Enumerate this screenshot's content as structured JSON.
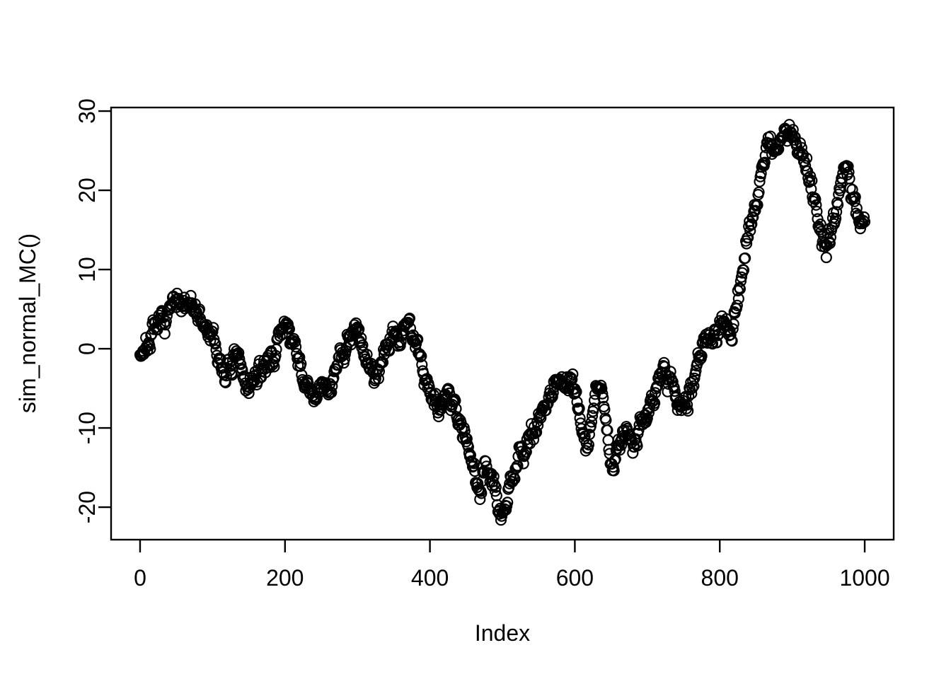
{
  "figure": {
    "kind": "R-base-graphics scatter plot",
    "background_color": "#ffffff",
    "foreground_color": "#000000"
  },
  "chart_data": {
    "type": "scatter",
    "title": "",
    "xlabel": "Index",
    "ylabel": "sim_normal_MC()",
    "x_ticks": [
      0,
      200,
      400,
      600,
      800,
      1000
    ],
    "y_ticks": [
      -20,
      -10,
      0,
      10,
      20,
      30
    ],
    "xlim": [
      -40,
      1040
    ],
    "ylim": [
      -24.1,
      30.45
    ],
    "grid": false,
    "legend": false,
    "marker": "open-circle",
    "n_points": 1001,
    "noise_sd": 0.7,
    "seed": 7,
    "series_waypoints": [
      [
        0,
        -0.5
      ],
      [
        8,
        0.2
      ],
      [
        15,
        1.2
      ],
      [
        22,
        2.3
      ],
      [
        30,
        3.3
      ],
      [
        38,
        4.4
      ],
      [
        45,
        5.4
      ],
      [
        52,
        5.6
      ],
      [
        58,
        4.7
      ],
      [
        64,
        5.7
      ],
      [
        70,
        6.2
      ],
      [
        76,
        5.2
      ],
      [
        82,
        3.6
      ],
      [
        88,
        2.6
      ],
      [
        94,
        2.2
      ],
      [
        100,
        1.2
      ],
      [
        106,
        -0.6
      ],
      [
        112,
        -2.0
      ],
      [
        118,
        -2.9
      ],
      [
        124,
        -2.6
      ],
      [
        130,
        -1.8
      ],
      [
        136,
        -1.6
      ],
      [
        142,
        -3.1
      ],
      [
        148,
        -4.7
      ],
      [
        154,
        -4.6
      ],
      [
        160,
        -3.7
      ],
      [
        166,
        -2.9
      ],
      [
        172,
        -2.2
      ],
      [
        178,
        -1.4
      ],
      [
        184,
        -0.8
      ],
      [
        190,
        0.6
      ],
      [
        196,
        2.2
      ],
      [
        201,
        3.7
      ],
      [
        205,
        2.7
      ],
      [
        210,
        0.7
      ],
      [
        215,
        -0.8
      ],
      [
        220,
        -2.4
      ],
      [
        226,
        -3.9
      ],
      [
        232,
        -5.1
      ],
      [
        238,
        -5.9
      ],
      [
        244,
        -6.3
      ],
      [
        250,
        -5.3
      ],
      [
        256,
        -4.5
      ],
      [
        262,
        -4.9
      ],
      [
        268,
        -3.3
      ],
      [
        274,
        -1.9
      ],
      [
        280,
        -0.4
      ],
      [
        286,
        1.2
      ],
      [
        292,
        2.4
      ],
      [
        298,
        3.1
      ],
      [
        304,
        1.5
      ],
      [
        310,
        -0.6
      ],
      [
        316,
        -2.3
      ],
      [
        322,
        -3.7
      ],
      [
        328,
        -2.9
      ],
      [
        334,
        -1.3
      ],
      [
        340,
        0.4
      ],
      [
        346,
        1.9
      ],
      [
        352,
        2.3
      ],
      [
        358,
        0.9
      ],
      [
        364,
        2.5
      ],
      [
        370,
        3.1
      ],
      [
        376,
        1.9
      ],
      [
        382,
        0.3
      ],
      [
        388,
        -1.9
      ],
      [
        394,
        -3.7
      ],
      [
        400,
        -4.9
      ],
      [
        406,
        -5.7
      ],
      [
        412,
        -6.7
      ],
      [
        418,
        -7.1
      ],
      [
        424,
        -6.1
      ],
      [
        430,
        -6.3
      ],
      [
        436,
        -7.7
      ],
      [
        442,
        -8.9
      ],
      [
        448,
        -10.7
      ],
      [
        454,
        -12.7
      ],
      [
        460,
        -14.5
      ],
      [
        465,
        -16.3
      ],
      [
        469,
        -17.7
      ],
      [
        473,
        -16.3
      ],
      [
        477,
        -14.9
      ],
      [
        481,
        -15.3
      ],
      [
        485,
        -16.3
      ],
      [
        489,
        -17.7
      ],
      [
        493,
        -19.3
      ],
      [
        497,
        -20.7
      ],
      [
        501,
        -21.9
      ],
      [
        505,
        -20.1
      ],
      [
        509,
        -18.1
      ],
      [
        513,
        -16.5
      ],
      [
        517,
        -15.1
      ],
      [
        521,
        -13.9
      ],
      [
        526,
        -12.9
      ],
      [
        531,
        -13.7
      ],
      [
        536,
        -12.5
      ],
      [
        541,
        -10.9
      ],
      [
        546,
        -9.7
      ],
      [
        551,
        -8.7
      ],
      [
        556,
        -7.3
      ],
      [
        561,
        -6.3
      ],
      [
        566,
        -5.3
      ],
      [
        571,
        -4.7
      ],
      [
        576,
        -3.9
      ],
      [
        581,
        -3.5
      ],
      [
        586,
        -4.3
      ],
      [
        591,
        -4.7
      ],
      [
        596,
        -3.7
      ],
      [
        601,
        -5.3
      ],
      [
        606,
        -8.1
      ],
      [
        611,
        -10.7
      ],
      [
        615,
        -12.3
      ],
      [
        619,
        -11.1
      ],
      [
        623,
        -8.9
      ],
      [
        627,
        -6.7
      ],
      [
        631,
        -4.5
      ],
      [
        634,
        -3.3
      ],
      [
        637,
        -5.3
      ],
      [
        641,
        -8.3
      ],
      [
        645,
        -11.1
      ],
      [
        649,
        -13.7
      ],
      [
        653,
        -14.7
      ],
      [
        657,
        -13.3
      ],
      [
        661,
        -12.3
      ],
      [
        666,
        -11.3
      ],
      [
        671,
        -10.7
      ],
      [
        676,
        -11.7
      ],
      [
        681,
        -12.3
      ],
      [
        686,
        -11.1
      ],
      [
        691,
        -9.7
      ],
      [
        696,
        -8.9
      ],
      [
        701,
        -8.1
      ],
      [
        706,
        -6.9
      ],
      [
        711,
        -5.5
      ],
      [
        716,
        -3.5
      ],
      [
        721,
        -2.1
      ],
      [
        726,
        -2.5
      ],
      [
        731,
        -3.7
      ],
      [
        736,
        -4.9
      ],
      [
        741,
        -6.3
      ],
      [
        746,
        -7.3
      ],
      [
        751,
        -8.3
      ],
      [
        756,
        -6.5
      ],
      [
        761,
        -4.7
      ],
      [
        766,
        -2.7
      ],
      [
        771,
        -0.7
      ],
      [
        776,
        0.5
      ],
      [
        781,
        1.3
      ],
      [
        786,
        0.7
      ],
      [
        791,
        1.3
      ],
      [
        796,
        2.1
      ],
      [
        801,
        3.1
      ],
      [
        806,
        4.5
      ],
      [
        810,
        2.7
      ],
      [
        814,
        1.3
      ],
      [
        818,
        3.1
      ],
      [
        822,
        5.5
      ],
      [
        826,
        7.5
      ],
      [
        830,
        9.5
      ],
      [
        834,
        11.5
      ],
      [
        838,
        13.1
      ],
      [
        842,
        14.7
      ],
      [
        846,
        16.3
      ],
      [
        850,
        18.1
      ],
      [
        854,
        20.1
      ],
      [
        858,
        22.1
      ],
      [
        862,
        24.1
      ],
      [
        866,
        25.9
      ],
      [
        870,
        26.3
      ],
      [
        874,
        25.1
      ],
      [
        878,
        24.3
      ],
      [
        882,
        25.5
      ],
      [
        886,
        26.9
      ],
      [
        890,
        27.9
      ],
      [
        894,
        28.1
      ],
      [
        898,
        27.5
      ],
      [
        902,
        26.7
      ],
      [
        906,
        25.9
      ],
      [
        910,
        25.1
      ],
      [
        914,
        24.5
      ],
      [
        918,
        23.3
      ],
      [
        922,
        22.1
      ],
      [
        926,
        20.7
      ],
      [
        930,
        19.3
      ],
      [
        934,
        17.9
      ],
      [
        938,
        15.9
      ],
      [
        942,
        14.1
      ],
      [
        946,
        13.1
      ],
      [
        950,
        13.5
      ],
      [
        954,
        14.9
      ],
      [
        958,
        16.5
      ],
      [
        962,
        18.3
      ],
      [
        966,
        20.1
      ],
      [
        970,
        21.7
      ],
      [
        974,
        22.3
      ],
      [
        978,
        21.7
      ],
      [
        982,
        20.3
      ],
      [
        986,
        19.1
      ],
      [
        990,
        17.9
      ],
      [
        995,
        16.7
      ],
      [
        1000,
        16.9
      ]
    ]
  }
}
